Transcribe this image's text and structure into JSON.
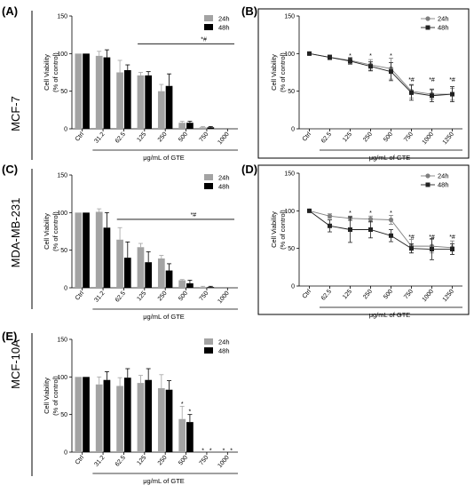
{
  "colors": {
    "series_24h": "#a3a3a3",
    "series_48h": "#000000",
    "line_24h": "#7f7f7f",
    "line_48h": "#222222",
    "panel_border": "#000000"
  },
  "chart_data": [
    {
      "id": "A",
      "panel_label": "(A)",
      "cell_line": "MCF-7",
      "type": "bar",
      "xlabel": "μg/mL of GTE",
      "ylabel": [
        "Cell Viability",
        "(% of control)"
      ],
      "ylim": [
        0,
        150
      ],
      "yticks": [
        "0",
        "50",
        "100",
        "150"
      ],
      "categories": [
        "Ctrl",
        "31.2",
        "62.5",
        "125",
        "250",
        "500",
        "750",
        "1000"
      ],
      "legend_position": "top-right",
      "series": [
        {
          "name": "24h",
          "values": [
            100,
            97,
            75,
            71,
            50,
            8,
            2,
            0
          ],
          "errors": [
            0,
            6,
            16,
            4,
            9,
            2,
            1,
            0
          ]
        },
        {
          "name": "48h",
          "values": [
            100,
            95,
            78,
            71,
            57,
            8,
            2,
            0
          ],
          "errors": [
            0,
            10,
            7,
            5,
            16,
            2,
            1,
            0
          ]
        }
      ],
      "bracket": {
        "from": "125",
        "to": "1000",
        "y": 113,
        "label": "*#"
      },
      "annotations": []
    },
    {
      "id": "B",
      "panel_label": "(B)",
      "type": "line",
      "xlabel": "μg/mL of GTE",
      "ylabel": [
        "Cell Viability",
        "(% of control)"
      ],
      "ylim": [
        0,
        150
      ],
      "yticks": [
        "0",
        "50",
        "100",
        "150"
      ],
      "categories": [
        "Ctrl",
        "62.5",
        "125",
        "250",
        "500",
        "750",
        "1000",
        "1250"
      ],
      "legend_position": "top-right",
      "series": [
        {
          "name": "24h",
          "marker": "circle",
          "values": [
            100,
            95,
            91,
            85,
            80,
            50,
            46,
            46
          ],
          "errors": [
            2,
            3,
            4,
            7,
            14,
            9,
            7,
            8
          ]
        },
        {
          "name": "48h",
          "marker": "square",
          "values": [
            100,
            95,
            90,
            83,
            76,
            48,
            44,
            46
          ],
          "errors": [
            2,
            3,
            4,
            6,
            12,
            10,
            8,
            10
          ]
        }
      ],
      "annotations": [
        {
          "x": "125",
          "y": 97,
          "text": "*"
        },
        {
          "x": "250",
          "y": 97,
          "text": "*"
        },
        {
          "x": "500",
          "y": 97,
          "text": "*"
        },
        {
          "x": "750",
          "y": 65,
          "text": "*#"
        },
        {
          "x": "1000",
          "y": 65,
          "text": "*#"
        },
        {
          "x": "1250",
          "y": 65,
          "text": "*#"
        }
      ]
    },
    {
      "id": "C",
      "panel_label": "(C)",
      "cell_line": "MDA-MB-231",
      "type": "bar",
      "xlabel": "μg/mL of GTE",
      "ylabel": [
        "Cell Viability",
        "(% of control)"
      ],
      "ylim": [
        0,
        150
      ],
      "yticks": [
        "0",
        "50",
        "100",
        "150"
      ],
      "categories": [
        "Ctrl",
        "31.2",
        "62.5",
        "125",
        "250",
        "500",
        "750",
        "1000"
      ],
      "legend_position": "top-right",
      "series": [
        {
          "name": "24h",
          "values": [
            100,
            101,
            64,
            54,
            39,
            10,
            1,
            0
          ],
          "errors": [
            0,
            4,
            16,
            5,
            4,
            1,
            1,
            0
          ]
        },
        {
          "name": "48h",
          "values": [
            100,
            80,
            40,
            34,
            23,
            6,
            1,
            0
          ],
          "errors": [
            0,
            20,
            21,
            14,
            9,
            4,
            1,
            0
          ]
        }
      ],
      "bracket": {
        "from": "62.5",
        "to": "1000",
        "y": 91,
        "label": "*#"
      },
      "annotations": []
    },
    {
      "id": "D",
      "panel_label": "(D)",
      "type": "line",
      "xlabel": "μg/mL of GTE",
      "ylabel": [
        "Cell Viability",
        "(% of control)"
      ],
      "ylim": [
        0,
        150
      ],
      "yticks": [
        "0",
        "50",
        "100",
        "150"
      ],
      "categories": [
        "Ctrl",
        "62.5",
        "125",
        "250",
        "500",
        "750",
        "1000",
        "1250"
      ],
      "legend_position": "top-right",
      "series": [
        {
          "name": "24h",
          "marker": "circle",
          "values": [
            100,
            93,
            90,
            89,
            88,
            53,
            53,
            51
          ],
          "errors": [
            2,
            3,
            3,
            4,
            6,
            9,
            9,
            9
          ]
        },
        {
          "name": "48h",
          "marker": "square",
          "values": [
            100,
            80,
            75,
            75,
            67,
            50,
            49,
            49
          ],
          "errors": [
            2,
            8,
            17,
            11,
            8,
            6,
            14,
            7
          ]
        }
      ],
      "annotations": [
        {
          "x": "125",
          "y": 97,
          "text": "*"
        },
        {
          "x": "250",
          "y": 97,
          "text": "*"
        },
        {
          "x": "500",
          "y": 97,
          "text": "*"
        },
        {
          "x": "750",
          "y": 65,
          "text": "*#"
        },
        {
          "x": "1000",
          "y": 65,
          "text": "*#"
        },
        {
          "x": "1250",
          "y": 65,
          "text": "*#"
        }
      ]
    },
    {
      "id": "E",
      "panel_label": "(E)",
      "cell_line": "MCF-10A",
      "type": "bar",
      "xlabel": "μg/mL of GTE",
      "ylabel": [
        "Cell Viability",
        "(% of control)"
      ],
      "ylim": [
        0,
        150
      ],
      "yticks": [
        "0",
        "50",
        "100",
        "150"
      ],
      "categories": [
        "Ctrl",
        "31.2",
        "62.5",
        "125",
        "250",
        "500",
        "750",
        "1000"
      ],
      "legend_position": "top-right",
      "series": [
        {
          "name": "24h",
          "values": [
            100,
            90,
            88,
            92,
            85,
            44,
            0,
            0
          ],
          "errors": [
            0,
            10,
            11,
            10,
            18,
            17,
            0,
            0
          ]
        },
        {
          "name": "48h",
          "values": [
            100,
            96,
            99,
            96,
            83,
            40,
            0,
            0
          ],
          "errors": [
            0,
            11,
            12,
            15,
            12,
            10,
            0,
            0
          ]
        }
      ],
      "annotations": [
        {
          "x": "500",
          "series": 0,
          "y": 64,
          "text": "*"
        },
        {
          "x": "500",
          "series": 1,
          "y": 54,
          "text": "*"
        },
        {
          "x": "750",
          "series": 0,
          "y": 2,
          "text": "*"
        },
        {
          "x": "750",
          "series": 1,
          "y": 2,
          "text": "*"
        },
        {
          "x": "1000",
          "series": 0,
          "y": 2,
          "text": "*"
        },
        {
          "x": "1000",
          "series": 1,
          "y": 2,
          "text": "*"
        }
      ]
    }
  ]
}
